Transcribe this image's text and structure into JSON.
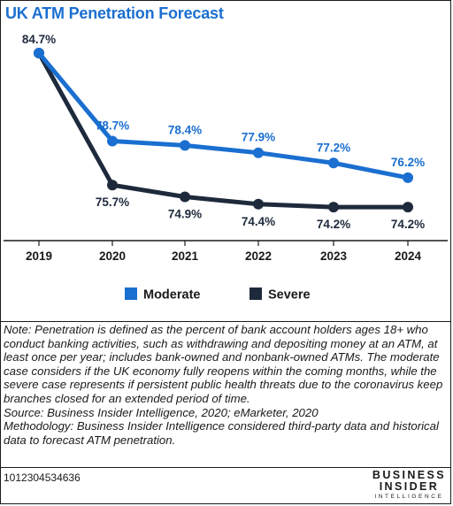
{
  "title": "UK ATM Penetration Forecast",
  "chart_data": {
    "type": "line",
    "title": "UK ATM Penetration Forecast",
    "x": [
      "2019",
      "2020",
      "2021",
      "2022",
      "2023",
      "2024"
    ],
    "series": [
      {
        "name": "Moderate",
        "color": "#1a6fd0",
        "values": [
          84.7,
          78.7,
          78.4,
          77.9,
          77.2,
          76.2
        ],
        "labels": [
          "84.7%",
          "78.7%",
          "78.4%",
          "77.9%",
          "77.2%",
          "76.2%"
        ]
      },
      {
        "name": "Severe",
        "color": "#1e2a3c",
        "values": [
          84.7,
          75.7,
          74.9,
          74.4,
          74.2,
          74.2
        ],
        "labels": [
          "84.7%",
          "75.7%",
          "74.9%",
          "74.4%",
          "74.2%",
          "74.2%"
        ]
      }
    ],
    "ylim": [
      73.0,
      85.0
    ],
    "xlabel": "",
    "ylabel": "",
    "grid": false,
    "legend": "bottom"
  },
  "note": {
    "lines": [
      "Note: Penetration is defined as the percent of bank account holders ages 18+ who conduct banking activities, such as withdrawing and depositing money at an ATM, at least once per year; includes bank-owned and nonbank-owned ATMs. The moderate case considers if the UK economy fully reopens within the coming months, while the severe case represents if persistent public health threats due to the coronavirus keep branches closed for an extended period of time.",
      "Source: Business Insider Intelligence, 2020; eMarketer, 2020",
      "Methodology: Business Insider Intelligence considered third-party data and historical data to forecast ATM penetration."
    ]
  },
  "footer": {
    "chart_id": "1012304534636",
    "brand_line1": "BUSINESS",
    "brand_line2": "INSIDER",
    "brand_line3": "INTELLIGENCE"
  }
}
